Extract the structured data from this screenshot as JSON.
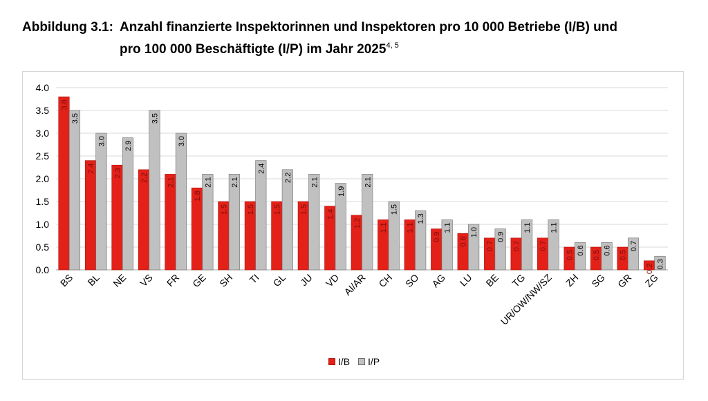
{
  "title": {
    "label": "Abbildung 3.1:",
    "line1": "Anzahl finanzierte Inspektorinnen und Inspektoren pro 10 000 Betriebe (I/B) und",
    "line2": "pro 100 000 Beschäftigte (I/P) im Jahr 2025",
    "footnotes": "4, 5"
  },
  "chart_data": {
    "type": "bar",
    "categories": [
      "BS",
      "BL",
      "NE",
      "VS",
      "FR",
      "GE",
      "SH",
      "TI",
      "GL",
      "JU",
      "VD",
      "AI/AR",
      "CH",
      "SO",
      "AG",
      "LU",
      "BE",
      "TG",
      "UR/OW/NW/SZ",
      "ZH",
      "SG",
      "GR",
      "ZG"
    ],
    "series": [
      {
        "name": "I/B",
        "color": "#e32119",
        "values": [
          3.8,
          2.4,
          2.3,
          2.2,
          2.1,
          1.8,
          1.5,
          1.5,
          1.5,
          1.5,
          1.4,
          1.2,
          1.1,
          1.1,
          0.9,
          0.8,
          0.7,
          0.7,
          0.7,
          0.5,
          0.5,
          0.5,
          0.2
        ]
      },
      {
        "name": "I/P",
        "color": "#c0c0c0",
        "values": [
          3.5,
          3.0,
          2.9,
          3.5,
          3.0,
          2.1,
          2.1,
          2.4,
          2.2,
          2.1,
          1.9,
          2.1,
          1.5,
          1.3,
          1.1,
          1.0,
          0.9,
          1.1,
          1.1,
          0.6,
          0.6,
          0.7,
          0.3
        ]
      }
    ],
    "y_ticks": [
      "0.0",
      "0.5",
      "1.0",
      "1.5",
      "2.0",
      "2.5",
      "3.0",
      "3.5",
      "4.0"
    ],
    "ylim": [
      0,
      4.0
    ],
    "grid": true,
    "legend_position": "bottom"
  }
}
